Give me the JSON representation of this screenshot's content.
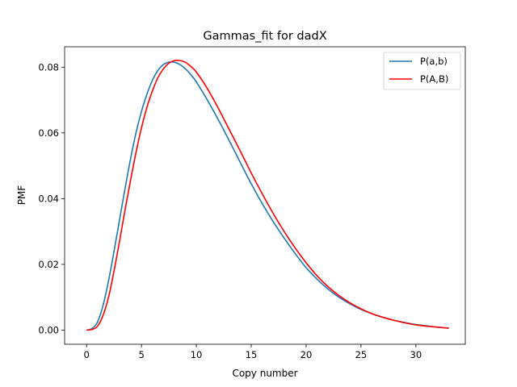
{
  "chart_data": {
    "type": "line",
    "title": "Gammas_fit for dadX",
    "xlabel": "Copy number",
    "ylabel": "PMF",
    "xlim": [
      -2.0,
      34.5
    ],
    "ylim": [
      -0.0043,
      0.0862
    ],
    "xticks": [
      0,
      5,
      10,
      15,
      20,
      25,
      30
    ],
    "xtick_labels": [
      "0",
      "5",
      "10",
      "15",
      "20",
      "25",
      "30"
    ],
    "yticks": [
      0.0,
      0.02,
      0.04,
      0.06,
      0.08
    ],
    "ytick_labels": [
      "0.00",
      "0.02",
      "0.04",
      "0.06",
      "0.08"
    ],
    "grid": false,
    "legend": {
      "position": "top-right"
    },
    "series": [
      {
        "name": "P(a,b)",
        "color": "#1f77b4",
        "x": [
          0,
          0.5,
          1,
          1.5,
          2,
          2.5,
          3,
          3.5,
          4,
          4.5,
          5,
          5.5,
          6,
          6.5,
          7,
          7.5,
          8,
          8.5,
          9,
          9.5,
          10,
          11,
          12,
          13,
          14,
          15,
          16,
          17,
          18,
          19,
          20,
          21,
          22,
          23,
          24,
          25,
          26,
          27,
          28,
          29,
          30,
          31,
          32,
          33
        ],
        "y": [
          0.0,
          0.0005,
          0.0025,
          0.0075,
          0.015,
          0.024,
          0.0335,
          0.043,
          0.052,
          0.06,
          0.0665,
          0.0718,
          0.076,
          0.079,
          0.0808,
          0.0815,
          0.0815,
          0.0808,
          0.0795,
          0.0777,
          0.0755,
          0.07,
          0.064,
          0.0576,
          0.051,
          0.0445,
          0.0385,
          0.033,
          0.028,
          0.0233,
          0.019,
          0.0155,
          0.0125,
          0.01,
          0.008,
          0.0063,
          0.005,
          0.0039,
          0.003,
          0.0023,
          0.0017,
          0.0013,
          0.0009,
          0.0006
        ]
      },
      {
        "name": "P(A,B)",
        "color": "#ff0000",
        "x": [
          0,
          0.5,
          1,
          1.5,
          2,
          2.5,
          3,
          3.5,
          4,
          4.5,
          5,
          5.5,
          6,
          6.5,
          7,
          7.5,
          8,
          8.5,
          9,
          9.5,
          10,
          11,
          12,
          13,
          14,
          15,
          16,
          17,
          18,
          19,
          20,
          21,
          22,
          23,
          24,
          25,
          26,
          27,
          28,
          29,
          30,
          31,
          32,
          33
        ],
        "y": [
          0.0,
          0.0002,
          0.0012,
          0.0045,
          0.01,
          0.018,
          0.027,
          0.0365,
          0.0455,
          0.054,
          0.0615,
          0.0678,
          0.0728,
          0.0768,
          0.0795,
          0.0812,
          0.082,
          0.082,
          0.0815,
          0.0802,
          0.0785,
          0.0735,
          0.0675,
          0.061,
          0.0545,
          0.0478,
          0.0415,
          0.0355,
          0.03,
          0.025,
          0.0205,
          0.0165,
          0.0132,
          0.0105,
          0.0083,
          0.0065,
          0.005,
          0.0039,
          0.003,
          0.0022,
          0.0016,
          0.0012,
          0.0009,
          0.0006
        ]
      }
    ]
  }
}
